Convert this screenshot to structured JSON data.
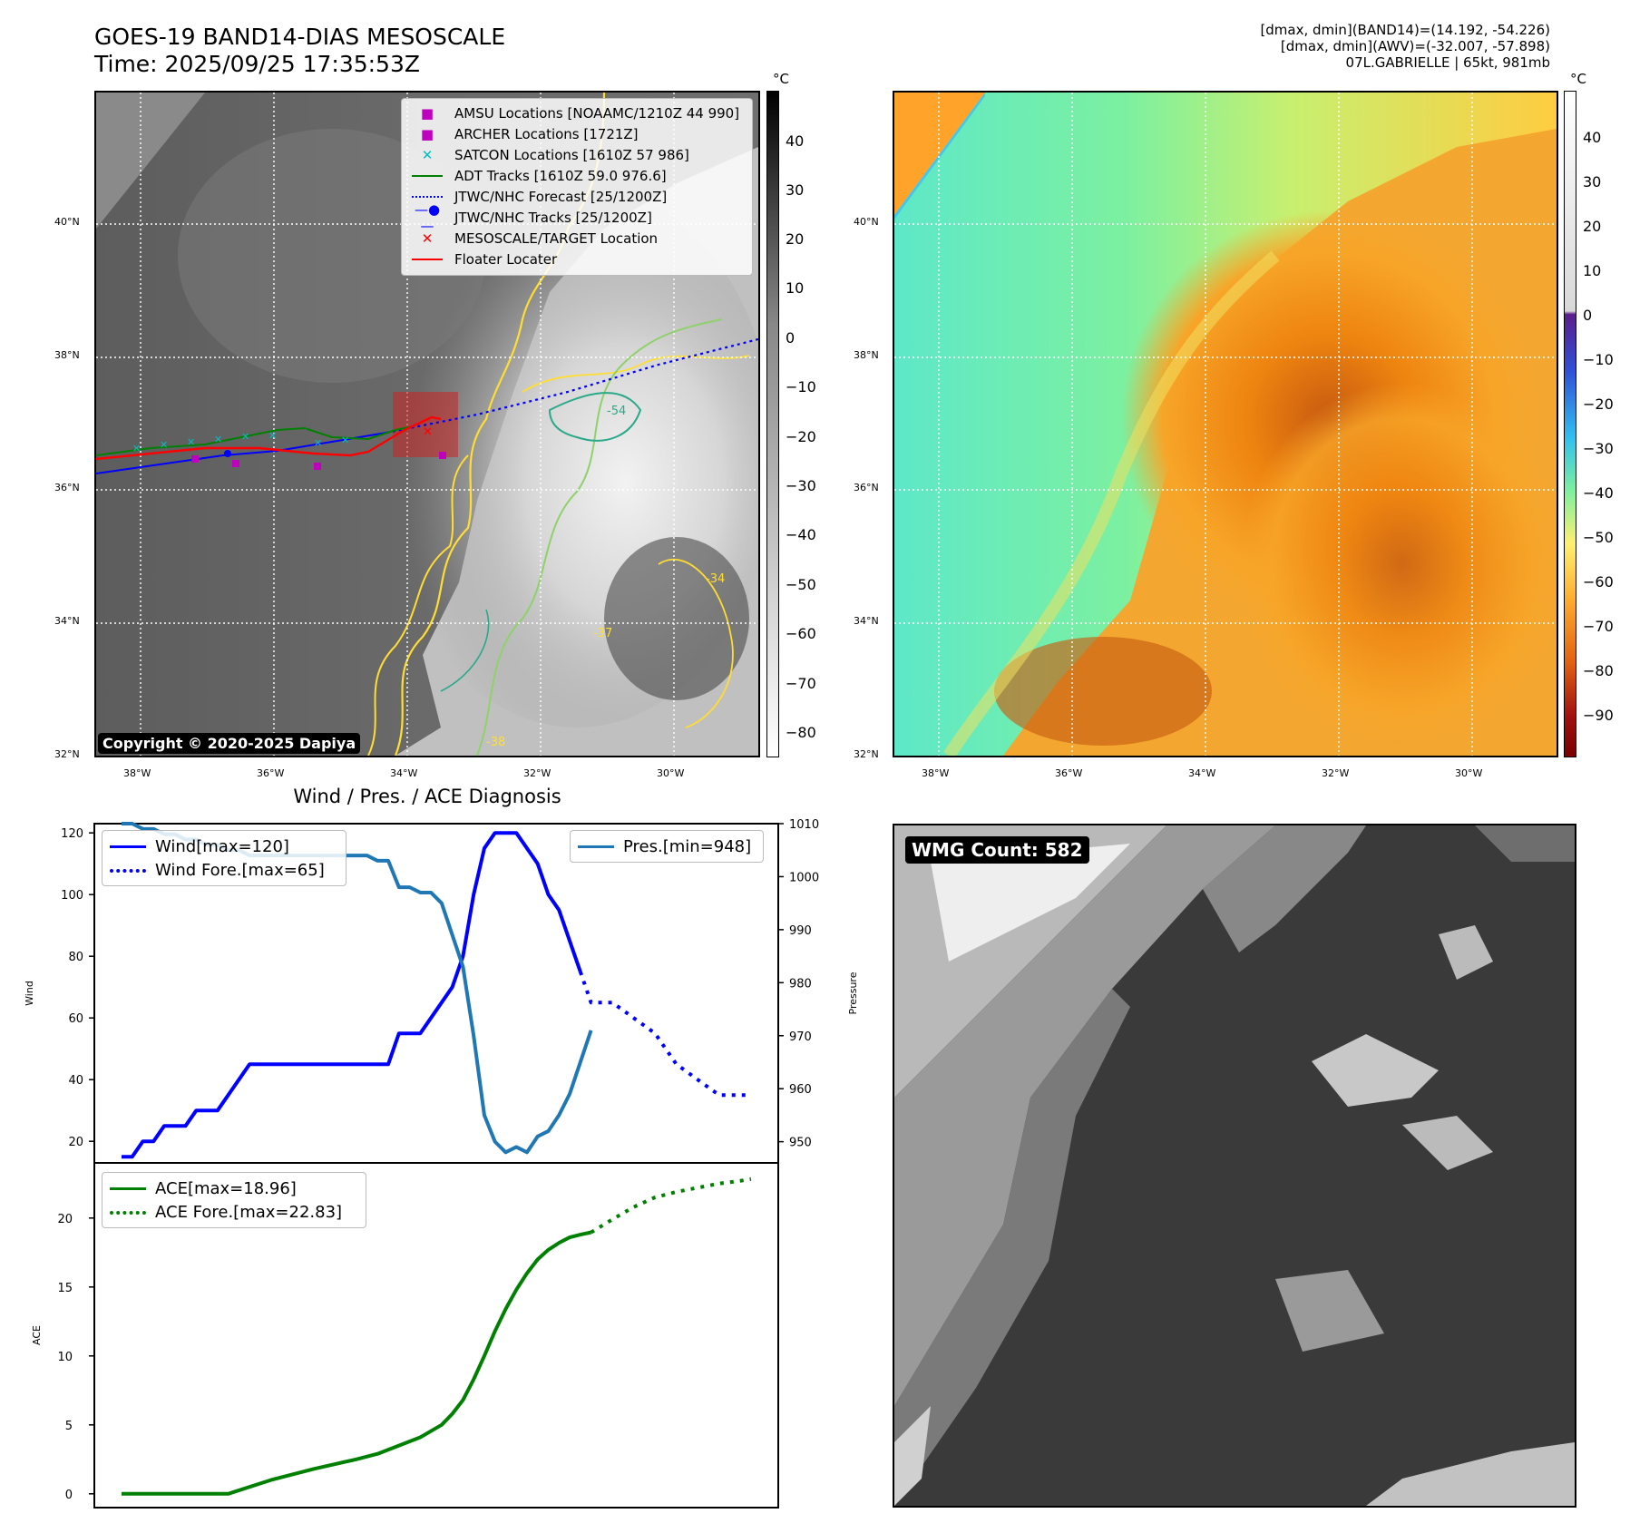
{
  "header": {
    "title_line1": "GOES-19 BAND14-DIAS MESOSCALE",
    "title_line2": "Time: 2025/09/25 17:35:53Z",
    "info_line1": "[dmax, dmin](BAND14)=(14.192, -54.226)",
    "info_line2": "[dmax, dmin](AWV)=(-32.007, -57.898)",
    "info_line3": "07L.GABRIELLE | 65kt, 981mb"
  },
  "map": {
    "lat_labels": [
      "40°N",
      "38°N",
      "36°N",
      "34°N",
      "32°N"
    ],
    "lon_labels": [
      "38°W",
      "36°W",
      "34°W",
      "32°W",
      "30°W"
    ],
    "copyright": "Copyright © 2020-2025 Dapiya",
    "unit": "°C",
    "contour_labels": [
      "-54",
      "-34",
      "-37",
      "-38"
    ],
    "legend": [
      {
        "label": "AMSU Locations [NOAAMC/1210Z 44 990]",
        "symbol": "square",
        "color": "#bf00bf"
      },
      {
        "label": "ARCHER Locations [1721Z]",
        "symbol": "square",
        "color": "#bf00bf"
      },
      {
        "label": "SATCON Locations [1610Z 57 986]",
        "symbol": "x",
        "color": "#00bfbf"
      },
      {
        "label": "ADT Tracks [1610Z 59.0 976.6]",
        "symbol": "line",
        "color": "#008000"
      },
      {
        "label": "JTWC/NHC Forecast [25/1200Z]",
        "symbol": "dotted",
        "color": "#0000ff"
      },
      {
        "label": "JTWC/NHC Tracks [25/1200Z]",
        "symbol": "line-dot",
        "color": "#0000ff"
      },
      {
        "label": "MESOSCALE/TARGET Location",
        "symbol": "x",
        "color": "#ff0000"
      },
      {
        "label": "Floater Locater",
        "symbol": "line",
        "color": "#ff0000"
      }
    ]
  },
  "colorbar_gray": {
    "ticks": [
      "40",
      "30",
      "20",
      "10",
      "0",
      "−10",
      "−20",
      "−30",
      "−40",
      "−50",
      "−60",
      "−70",
      "−80"
    ]
  },
  "colorbar_color": {
    "ticks": [
      "40",
      "30",
      "20",
      "10",
      "0",
      "−10",
      "−20",
      "−30",
      "−40",
      "−50",
      "−60",
      "−70",
      "−80",
      "−90"
    ]
  },
  "diagnosis": {
    "title": "Wind / Pres. / ACE Diagnosis",
    "wind_ylabel": "Wind",
    "pres_ylabel": "Pressure",
    "ace_ylabel": "ACE",
    "legend_wind": "Wind[max=120]",
    "legend_wind_fore": "Wind Fore.[max=65]",
    "legend_pres": "Pres.[min=948]",
    "legend_ace": "ACE[max=18.96]",
    "legend_ace_fore": "ACE Fore.[max=22.83]"
  },
  "wmg": {
    "label": "WMG Count: 582"
  },
  "chart_data": [
    {
      "type": "line",
      "title": "Wind / Pres. / ACE Diagnosis",
      "ylabel": "Wind",
      "ylim": [
        13,
        123
      ],
      "y_ticks": [
        20,
        40,
        60,
        80,
        100,
        120
      ],
      "x_index_range": [
        0,
        59
      ],
      "series": [
        {
          "name": "Wind[max=120]",
          "color": "#0000ff",
          "style": "solid",
          "x": [
            0,
            1,
            2,
            3,
            4,
            5,
            6,
            7,
            8,
            9,
            10,
            11,
            12,
            13,
            14,
            15,
            16,
            17,
            18,
            19,
            20,
            21,
            22,
            23,
            24,
            25,
            26,
            27,
            28,
            29,
            30,
            31,
            32,
            33,
            34,
            35,
            36,
            37,
            38,
            39,
            40,
            41,
            42,
            43
          ],
          "values": [
            15,
            15,
            20,
            20,
            25,
            25,
            25,
            30,
            30,
            30,
            35,
            40,
            45,
            45,
            45,
            45,
            45,
            45,
            45,
            45,
            45,
            45,
            45,
            45,
            45,
            45,
            55,
            55,
            55,
            60,
            65,
            70,
            80,
            100,
            115,
            120,
            120,
            120,
            115,
            110,
            100,
            95,
            85,
            75
          ]
        },
        {
          "name": "Wind Fore.[max=65]",
          "color": "#0000ff",
          "style": "dotted",
          "x": [
            43,
            44,
            46,
            48,
            50,
            52,
            54,
            56,
            58,
            59
          ],
          "values": [
            75,
            65,
            65,
            60,
            55,
            45,
            40,
            35,
            35,
            35
          ]
        },
        {
          "name": "Pres.[min=948]",
          "color": "#1f77b4",
          "style": "solid",
          "axis": "right",
          "ylim": [
            946,
            1010
          ],
          "y_ticks": [
            950,
            960,
            970,
            980,
            990,
            1000,
            1010
          ],
          "x": [
            0,
            1,
            2,
            3,
            4,
            5,
            6,
            7,
            8,
            9,
            10,
            11,
            12,
            13,
            14,
            15,
            16,
            17,
            18,
            19,
            20,
            21,
            22,
            23,
            24,
            25,
            26,
            27,
            28,
            29,
            30,
            31,
            32,
            33,
            34,
            35,
            36,
            37,
            38,
            39,
            40,
            41,
            42,
            43,
            44
          ],
          "values": [
            1010,
            1010,
            1009,
            1009,
            1008,
            1008,
            1007,
            1007,
            1006,
            1006,
            1005,
            1005,
            1004,
            1004,
            1004,
            1004,
            1004,
            1004,
            1004,
            1004,
            1004,
            1004,
            1004,
            1004,
            1003,
            1003,
            998,
            998,
            997,
            997,
            995,
            989,
            983,
            970,
            955,
            950,
            948,
            949,
            948,
            951,
            952,
            955,
            959,
            965,
            971
          ]
        }
      ]
    },
    {
      "type": "line",
      "ylabel": "ACE",
      "ylim": [
        -1,
        24
      ],
      "y_ticks": [
        0,
        5,
        10,
        15,
        20
      ],
      "x_index_range": [
        0,
        59
      ],
      "series": [
        {
          "name": "ACE[max=18.96]",
          "color": "#008000",
          "style": "solid",
          "x": [
            0,
            5,
            10,
            14,
            18,
            22,
            24,
            26,
            28,
            30,
            31,
            32,
            33,
            34,
            35,
            36,
            37,
            38,
            39,
            40,
            41,
            42,
            43,
            44
          ],
          "values": [
            0,
            0,
            0,
            1,
            1.8,
            2.5,
            2.9,
            3.5,
            4.1,
            5,
            5.8,
            6.8,
            8.3,
            10,
            11.8,
            13.4,
            14.8,
            16,
            17,
            17.7,
            18.2,
            18.6,
            18.8,
            18.96
          ]
        },
        {
          "name": "ACE Fore.[max=22.83]",
          "color": "#008000",
          "style": "dotted",
          "x": [
            44,
            46,
            48,
            50,
            52,
            54,
            56,
            58,
            59
          ],
          "values": [
            18.96,
            19.9,
            20.8,
            21.5,
            21.9,
            22.2,
            22.5,
            22.7,
            22.83
          ]
        }
      ]
    }
  ]
}
